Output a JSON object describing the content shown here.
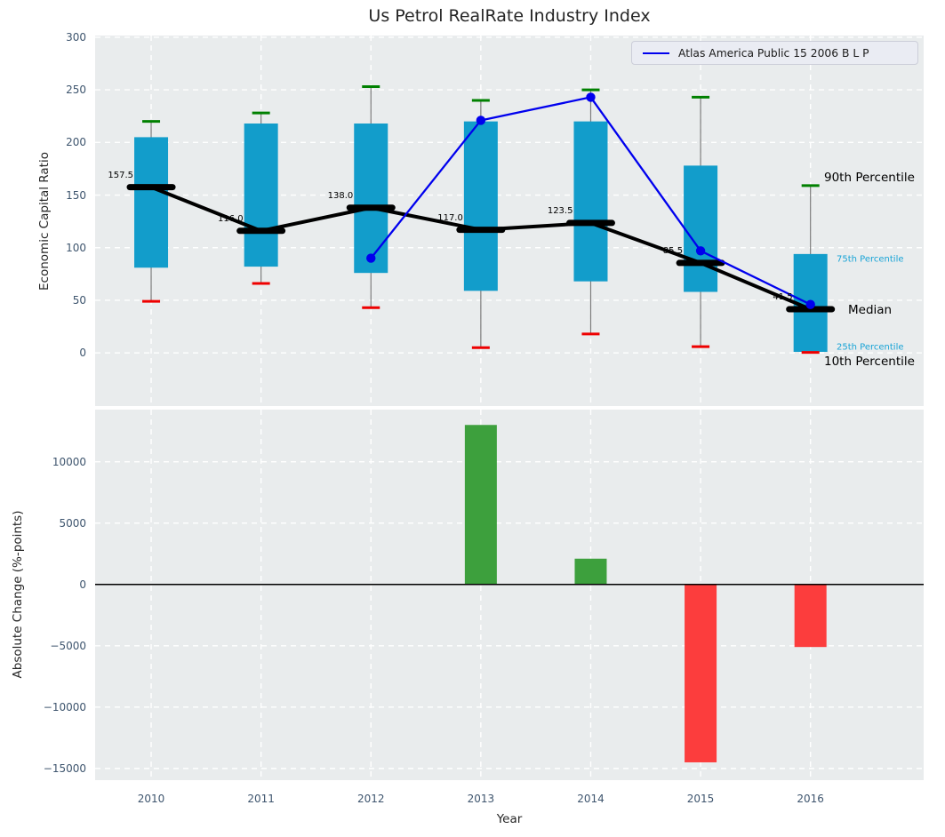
{
  "title": "Us Petrol RealRate Industry Index",
  "legend": {
    "series_label": "Atlas America Public 15 2006 B L P"
  },
  "annotations": {
    "p90": "90th Percentile",
    "p75": "75th Percentile",
    "median": "Median",
    "p25": "25th Percentile",
    "p10": "10th Percentile"
  },
  "colors": {
    "panel_bg": "#e9eced",
    "grid": "#ffffff",
    "box": "#129dcb",
    "cap90": "#008000",
    "cap10": "#ee0000",
    "whisker": "#7c7c7c",
    "median": "#000000",
    "series": "#0000ee",
    "bar_pos": "#3da03d",
    "bar_neg": "#fc3d3d",
    "tick_text": "#3e556e",
    "cyan_label": "#17a3d6",
    "zero_line": "#000000"
  },
  "chart_data": [
    {
      "type": "box-percentile",
      "title": "Us Petrol RealRate Industry Index",
      "ylabel": "Economic Capital Ratio",
      "years": [
        2010,
        2011,
        2012,
        2013,
        2014,
        2015,
        2016
      ],
      "year_labels": [
        "2010",
        "2011",
        "2012",
        "2013",
        "2014",
        "2015",
        "2016"
      ],
      "p10": [
        49,
        66,
        43,
        5,
        18,
        6,
        0.5
      ],
      "p25": [
        81,
        82,
        76,
        59,
        68,
        58,
        1
      ],
      "median": [
        157.5,
        116.0,
        138.0,
        117.0,
        123.5,
        85.5,
        41.5
      ],
      "median_labels": [
        "157.5",
        "116.0",
        "138.0",
        "117.0",
        "123.5",
        "85.5",
        "41.5"
      ],
      "p75": [
        205,
        218,
        218,
        220,
        220,
        178,
        94
      ],
      "p90": [
        220,
        228,
        253,
        240,
        250,
        243,
        159
      ],
      "series": {
        "name": "Atlas America Public 15 2006 B L P",
        "x": [
          2012,
          2013,
          2014,
          2015,
          2016
        ],
        "y": [
          90,
          221,
          243,
          97,
          46
        ]
      },
      "yticks": [
        0,
        50,
        100,
        150,
        200,
        250,
        300
      ],
      "ytick_labels": [
        "0",
        "50",
        "100",
        "150",
        "200",
        "250",
        "300"
      ],
      "ylim": [
        -50.5,
        301.6
      ],
      "xlim": [
        2009.49,
        2017.03
      ],
      "grid": true,
      "legend_position": "upper right"
    },
    {
      "type": "bar",
      "ylabel": "Absolute Change (%-points)",
      "xlabel": "Year",
      "years": [
        2010,
        2011,
        2012,
        2013,
        2014,
        2015,
        2016
      ],
      "values": [
        null,
        null,
        null,
        13000,
        2100,
        -14500,
        -5100
      ],
      "yticks": [
        10000,
        5000,
        0,
        -5000,
        -10000,
        -15000
      ],
      "ytick_labels": [
        "10000",
        "5000",
        "0",
        "−5000",
        "−10000",
        "−15000"
      ],
      "ylim": [
        -15950,
        14250
      ],
      "xlim": [
        2009.49,
        2017.03
      ],
      "grid": true
    }
  ]
}
